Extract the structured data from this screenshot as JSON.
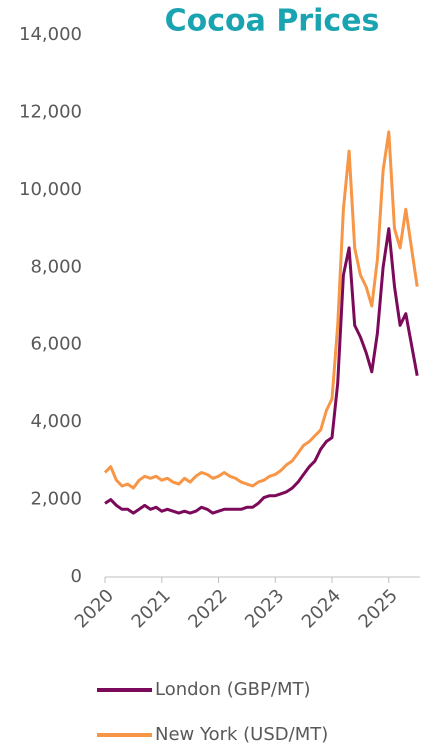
{
  "chart_data": {
    "type": "line",
    "title": "Cocoa Prices",
    "x": [
      2020.0,
      2020.1,
      2020.2,
      2020.3,
      2020.4,
      2020.5,
      2020.6,
      2020.7,
      2020.8,
      2020.9,
      2021.0,
      2021.1,
      2021.2,
      2021.3,
      2021.4,
      2021.5,
      2021.6,
      2021.7,
      2021.8,
      2021.9,
      2022.0,
      2022.1,
      2022.2,
      2022.3,
      2022.4,
      2022.5,
      2022.6,
      2022.7,
      2022.8,
      2022.9,
      2023.0,
      2023.1,
      2023.2,
      2023.3,
      2023.4,
      2023.5,
      2023.6,
      2023.7,
      2023.8,
      2023.9,
      2024.0,
      2024.1,
      2024.2,
      2024.3,
      2024.4,
      2024.5,
      2024.6,
      2024.7,
      2024.8,
      2024.9,
      2025.0,
      2025.1,
      2025.2,
      2025.3,
      2025.4,
      2025.5
    ],
    "series": [
      {
        "name": "London (GBP/MT)",
        "color": "#7b0a5a",
        "values": [
          1900,
          2000,
          1850,
          1750,
          1750,
          1650,
          1750,
          1850,
          1750,
          1800,
          1700,
          1750,
          1700,
          1650,
          1700,
          1650,
          1700,
          1800,
          1750,
          1650,
          1700,
          1750,
          1750,
          1750,
          1750,
          1800,
          1800,
          1900,
          2050,
          2100,
          2100,
          2150,
          2200,
          2300,
          2450,
          2650,
          2850,
          3000,
          3300,
          3500,
          3600,
          5000,
          7800,
          8500,
          6500,
          6200,
          5800,
          5300,
          6300,
          8000,
          9000,
          7500,
          6500,
          6800,
          6000,
          5200
        ]
      },
      {
        "name": "New York (USD/MT)",
        "color": "#f79646",
        "values": [
          2700,
          2850,
          2500,
          2350,
          2400,
          2300,
          2500,
          2600,
          2550,
          2600,
          2500,
          2550,
          2450,
          2400,
          2550,
          2450,
          2600,
          2700,
          2650,
          2550,
          2600,
          2700,
          2600,
          2550,
          2450,
          2400,
          2350,
          2450,
          2500,
          2600,
          2650,
          2750,
          2900,
          3000,
          3200,
          3400,
          3500,
          3650,
          3800,
          4300,
          4600,
          6500,
          9500,
          11000,
          8500,
          7800,
          7500,
          7000,
          8200,
          10500,
          11500,
          9000,
          8500,
          9500,
          8500,
          7500
        ]
      }
    ],
    "xlim": [
      2020,
      2025.55
    ],
    "xticks": [
      2020,
      2021,
      2022,
      2023,
      2024,
      2025
    ],
    "ylim": [
      0,
      14000
    ],
    "yticks": [
      0,
      {
        "value": 2000,
        "label": "2,000"
      },
      {
        "value": 4000,
        "label": "4,000"
      },
      {
        "value": 6000,
        "label": "6,000"
      },
      {
        "value": 8000,
        "label": "8,000"
      },
      {
        "value": 10000,
        "label": "10,000"
      },
      {
        "value": 12000,
        "label": "12,000"
      },
      {
        "value": 14000,
        "label": "14,000"
      }
    ],
    "grid": false
  }
}
